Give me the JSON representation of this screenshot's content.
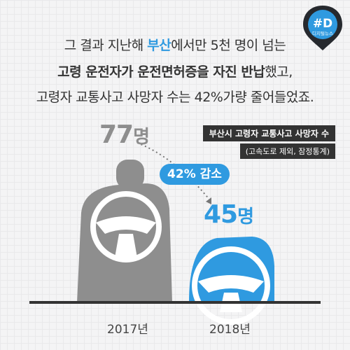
{
  "headline": {
    "line1_pre": "그 결과 지난해 ",
    "line1_highlight": "부산",
    "line1_post": "에서만 5천 명이 넘는",
    "line2_bold": "고령 운전자가 운전면허증을 자진 반납",
    "line2_post": "했고,",
    "line3": "고령자 교통사고 사망자 수는 42%가량 줄어들었죠."
  },
  "badge": {
    "mark": "#D",
    "label": "디지털뉴스"
  },
  "legend": {
    "title": "부산시 고령자 교통사고 사망자 수",
    "note": "(고속도로 제외, 잠정통계)"
  },
  "change_label": "42% 감소",
  "chart_data": {
    "type": "bar",
    "title": "부산시 고령자 교통사고 사망자 수",
    "categories": [
      "2017년",
      "2018년"
    ],
    "values": [
      77,
      45
    ],
    "value_labels": [
      "77명",
      "45명"
    ],
    "value_numbers": [
      "77",
      "45"
    ],
    "unit": "명",
    "annotation": "42% 감소",
    "colors": [
      "#8e8e8e",
      "#2f9ae0"
    ]
  }
}
